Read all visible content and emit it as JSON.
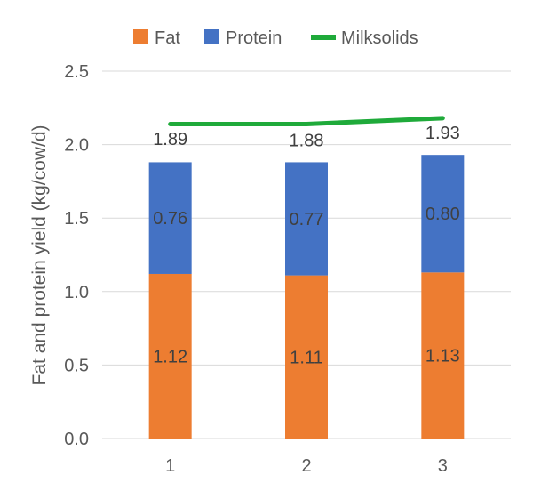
{
  "chart_data": {
    "type": "bar",
    "stacked": true,
    "categories": [
      "1",
      "2",
      "3"
    ],
    "series": [
      {
        "name": "Fat",
        "type": "bar",
        "values": [
          1.12,
          1.11,
          1.13
        ],
        "color": "#ED7D31",
        "labels": [
          "1.12",
          "1.11",
          "1.13"
        ]
      },
      {
        "name": "Protein",
        "type": "bar",
        "values": [
          0.76,
          0.77,
          0.8
        ],
        "color": "#4472C4",
        "labels": [
          "0.76",
          "0.77",
          "0.80"
        ]
      },
      {
        "name": "Milksolids",
        "type": "line",
        "values": [
          2.14,
          2.14,
          2.18
        ],
        "color": "#1FAA3A"
      }
    ],
    "totals": {
      "values": [
        1.89,
        1.88,
        1.93
      ],
      "labels": [
        "1.89",
        "1.88",
        "1.93"
      ]
    },
    "title": "",
    "xlabel": "",
    "ylabel": "Fat and protein yield (kg/cow/d)",
    "ylim": [
      0,
      2.5
    ],
    "yticks": [
      "0.0",
      "0.5",
      "1.0",
      "1.5",
      "2.0",
      "2.5"
    ],
    "ytick_values": [
      0,
      0.5,
      1.0,
      1.5,
      2.0,
      2.5
    ],
    "grid": true,
    "legend_position": "top"
  }
}
